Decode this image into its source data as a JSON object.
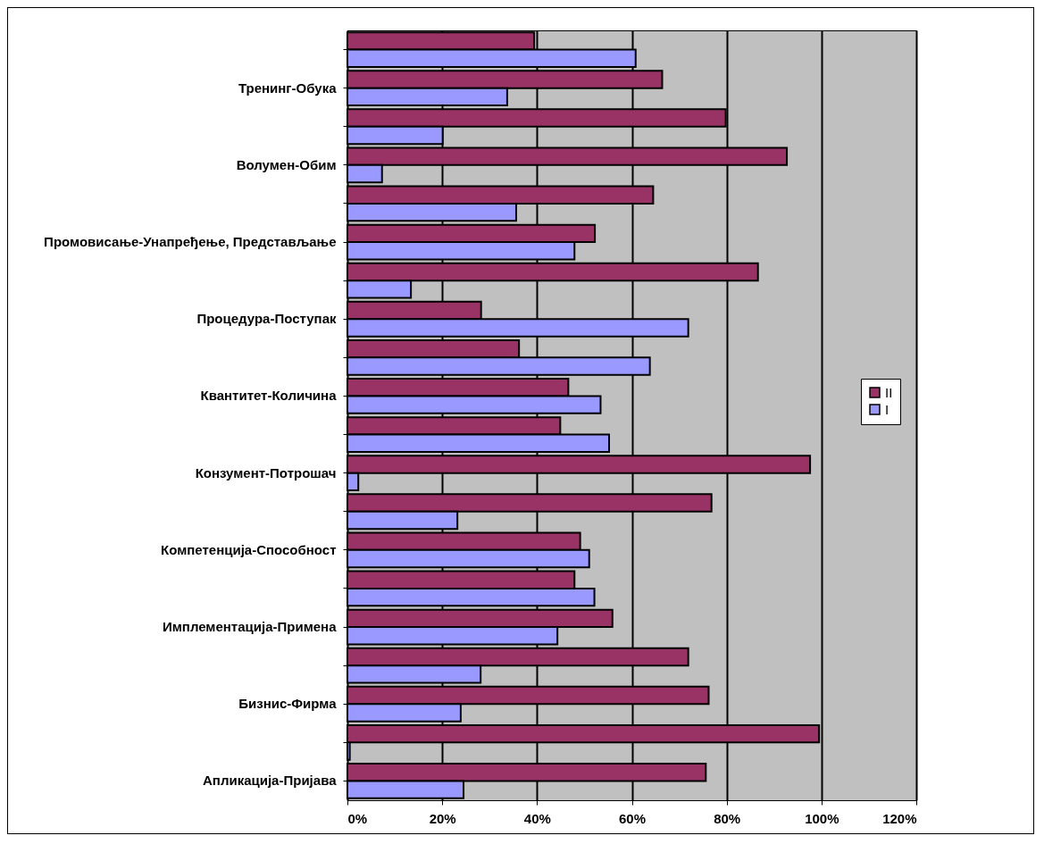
{
  "chart_data": {
    "type": "bar",
    "orientation": "horizontal",
    "categories": [
      null,
      "Тренинг-Обука",
      null,
      "Волумен-Обим",
      null,
      "Промовисање-Унапређење,  Представљање",
      null,
      "Процедура-Поступак",
      null,
      "Квантитет-Количина",
      null,
      "Конзумент-Потрошач",
      null,
      "Компетенција-Способност",
      null,
      "Имплементација-Примена",
      null,
      "Бизнис-Фирма",
      null,
      "Апликација-Пријава"
    ],
    "series": [
      {
        "name": "II",
        "color": "#993366",
        "values": [
          39.4,
          66.4,
          79.8,
          92.7,
          64.5,
          52.2,
          86.6,
          28.2,
          36.2,
          46.6,
          44.9,
          97.6,
          76.8,
          49.1,
          47.9,
          55.9,
          71.9,
          76.2,
          99.5,
          75.6
        ]
      },
      {
        "name": "I",
        "color": "#9999ff",
        "values": [
          60.8,
          33.7,
          20.1,
          7.3,
          35.6,
          47.9,
          13.4,
          71.9,
          63.8,
          53.4,
          55.2,
          2.3,
          23.2,
          51.0,
          52.1,
          44.3,
          28.1,
          23.9,
          0.5,
          24.5
        ]
      }
    ],
    "xlim": [
      0,
      120
    ],
    "xticks": [
      {
        "value": 0,
        "label": "0%"
      },
      {
        "value": 20,
        "label": "20%"
      },
      {
        "value": 40,
        "label": "40%"
      },
      {
        "value": 60,
        "label": "60%"
      },
      {
        "value": 80,
        "label": "80%"
      },
      {
        "value": 100,
        "label": "100%"
      },
      {
        "value": 120,
        "label": "120%"
      }
    ],
    "grid": "x",
    "legend": "right"
  }
}
